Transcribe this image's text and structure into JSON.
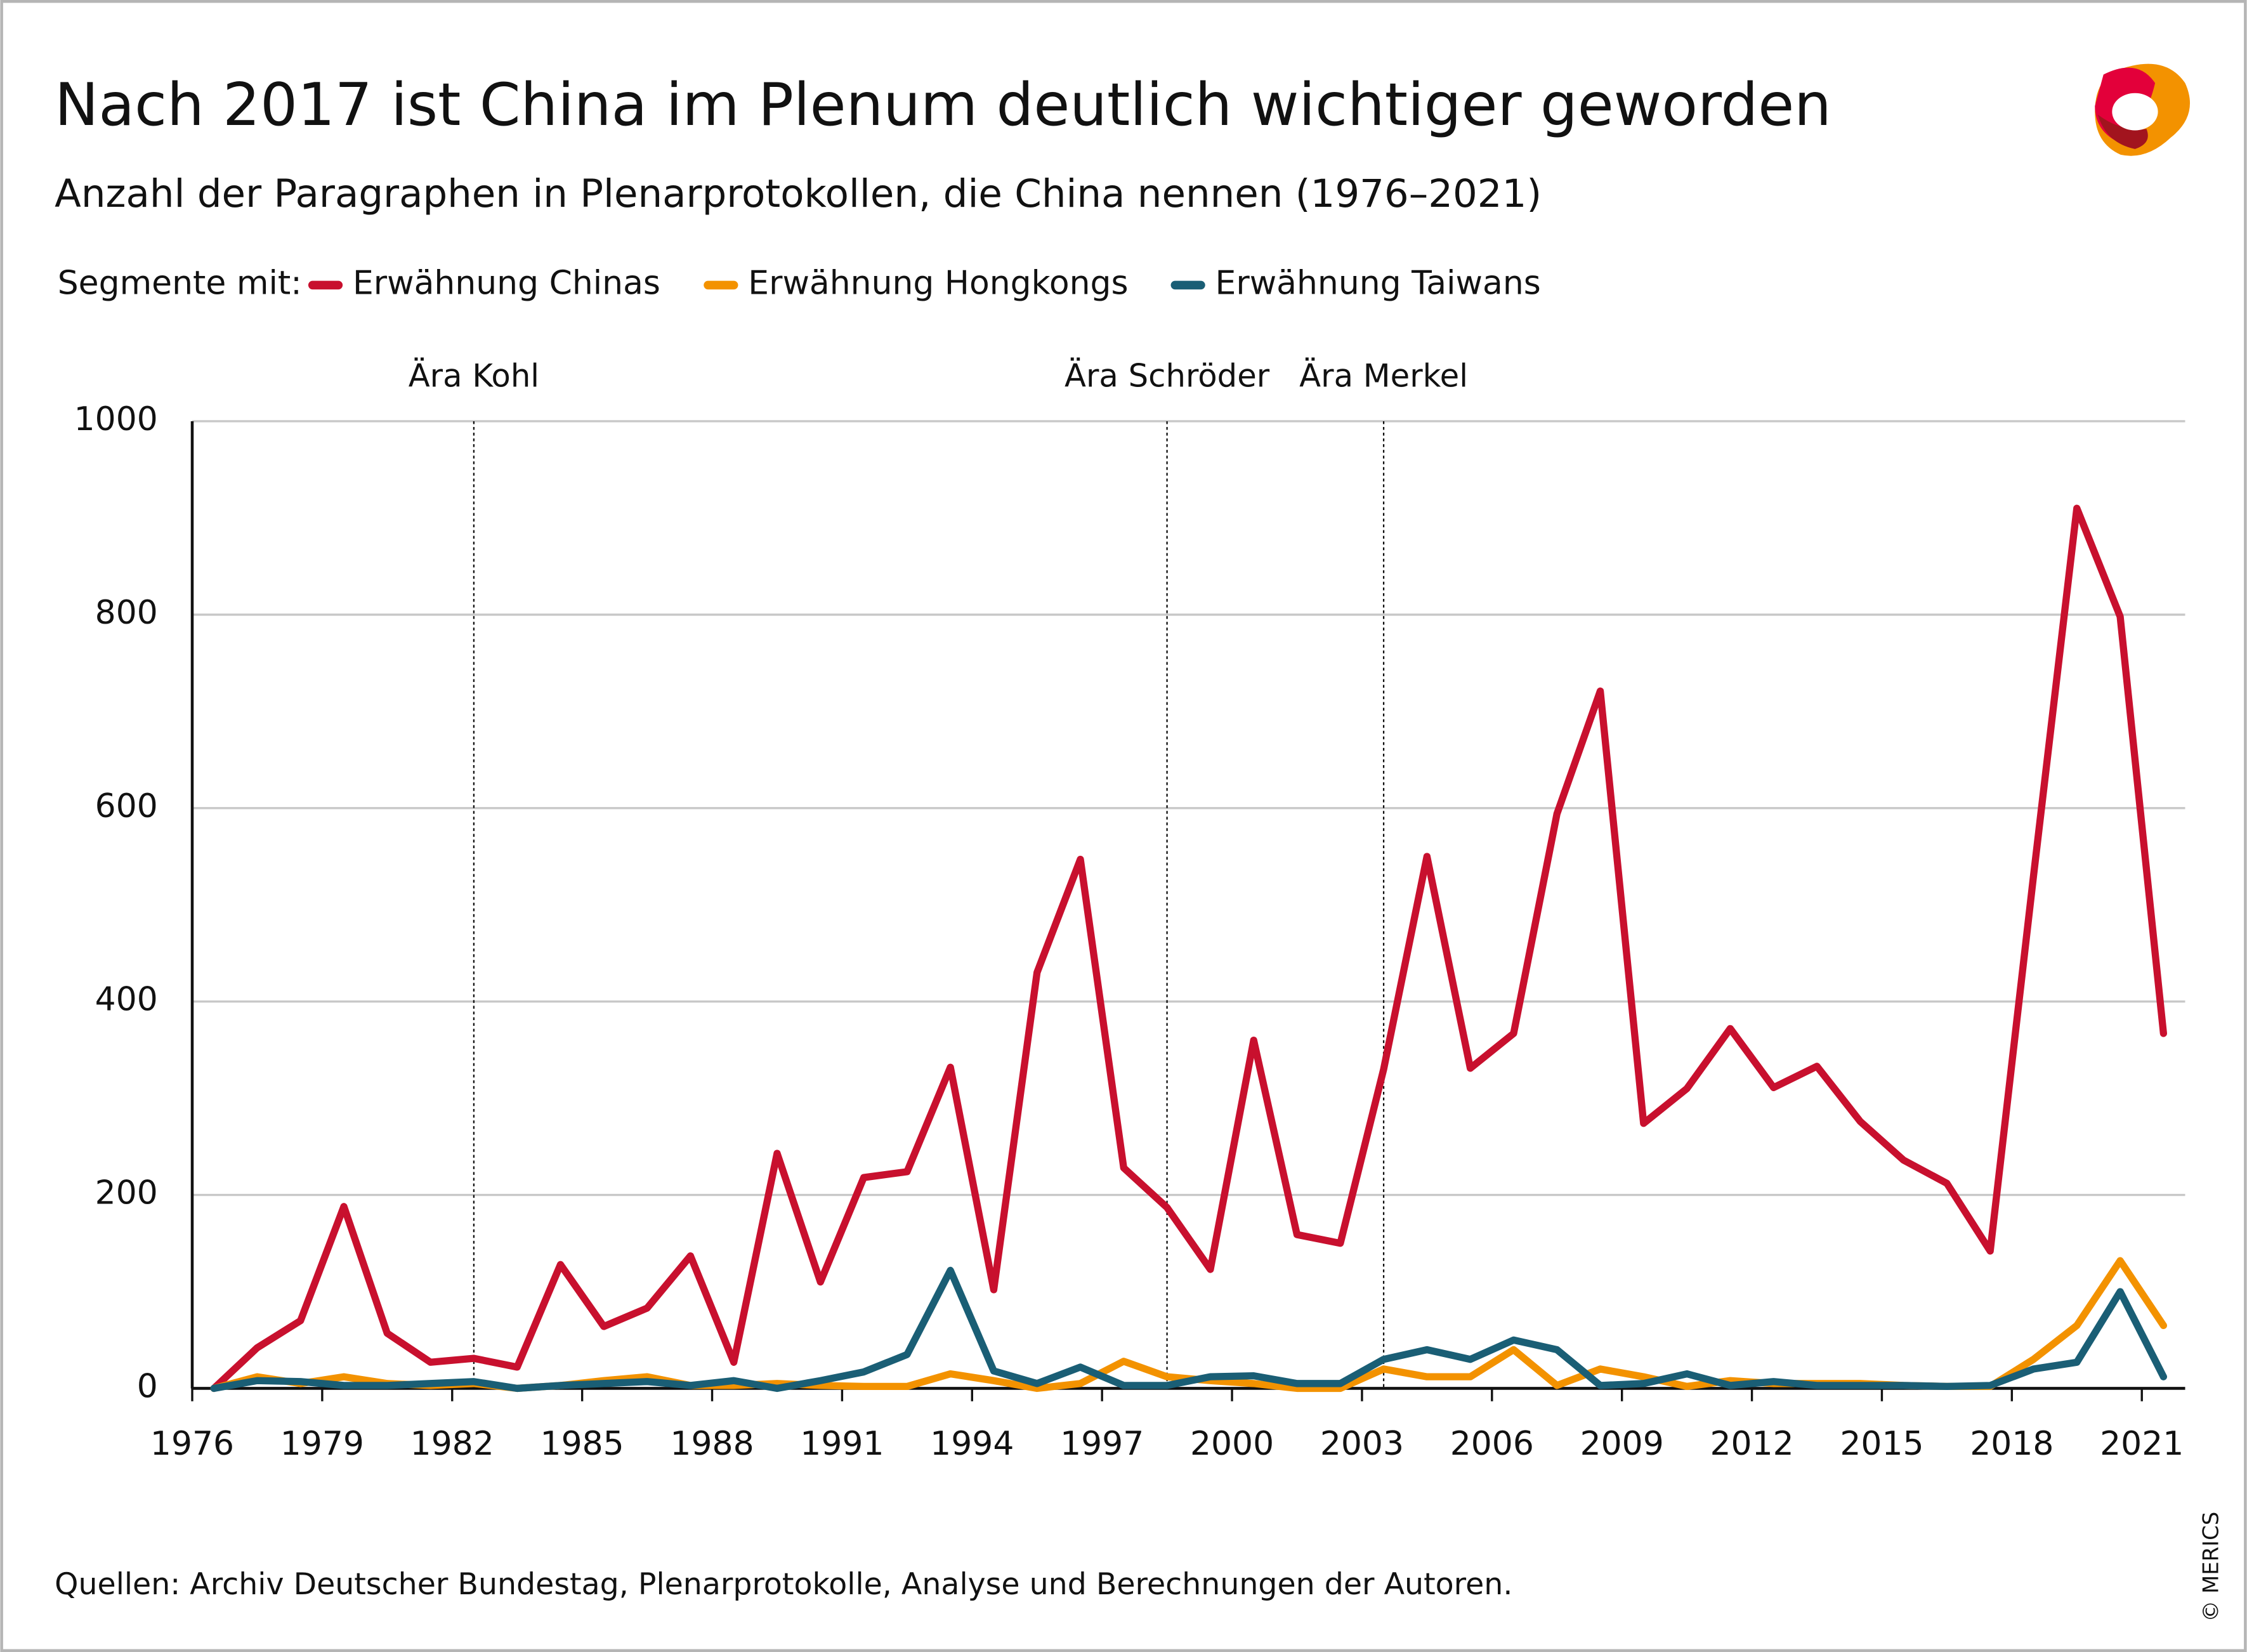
{
  "chart_data": {
    "type": "line",
    "title": "Nach 2017 ist China im Plenum deutlich wichtiger geworden",
    "subtitle": "Anzahl der Paragraphen in Plenarprotokollen, die China nennen (1976–2021)",
    "legend_title": "Segmente mit:",
    "x": [
      1976.5,
      1977.5,
      1978.5,
      1979.5,
      1980.5,
      1981.5,
      1982.5,
      1983.5,
      1984.5,
      1985.5,
      1986.5,
      1987.5,
      1988.5,
      1989.5,
      1990.5,
      1991.5,
      1992.5,
      1993.5,
      1994.5,
      1995.5,
      1996.5,
      1997.5,
      1998.5,
      1999.5,
      2000.5,
      2001.5,
      2002.5,
      2003.5,
      2004.5,
      2005.5,
      2006.5,
      2007.5,
      2008.5,
      2009.5,
      2010.5,
      2011.5,
      2012.5,
      2013.5,
      2014.5,
      2015.5,
      2016.5,
      2017.5,
      2018.5,
      2019.5,
      2020.5,
      2021.5
    ],
    "series": [
      {
        "name": "Erwähnung Chinas",
        "color": "#c8102e",
        "values": [
          0,
          42,
          70,
          188,
          57,
          27,
          31,
          22,
          128,
          64,
          83,
          137,
          27,
          243,
          110,
          218,
          224,
          332,
          102,
          430,
          547,
          228,
          187,
          123,
          360,
          159,
          150,
          330,
          550,
          331,
          367,
          594,
          721,
          274,
          310,
          372,
          311,
          333,
          276,
          236,
          212,
          142,
          530,
          910,
          798,
          367
        ]
      },
      {
        "name": "Erwähnung Hongkongs",
        "color": "#f39200",
        "values": [
          0,
          12,
          5,
          12,
          5,
          3,
          5,
          0,
          3,
          8,
          12,
          3,
          3,
          5,
          3,
          2,
          2,
          15,
          8,
          0,
          5,
          28,
          12,
          8,
          5,
          0,
          0,
          20,
          12,
          12,
          40,
          3,
          20,
          12,
          2,
          8,
          5,
          5,
          5,
          3,
          2,
          2,
          30,
          65,
          132,
          65
        ]
      },
      {
        "name": "Erwähnung Taiwans",
        "color": "#1a5e75",
        "values": [
          0,
          8,
          7,
          3,
          3,
          5,
          7,
          0,
          3,
          5,
          7,
          3,
          8,
          0,
          8,
          17,
          35,
          122,
          18,
          5,
          22,
          3,
          3,
          12,
          13,
          5,
          5,
          30,
          40,
          30,
          50,
          40,
          3,
          5,
          15,
          3,
          7,
          3,
          3,
          3,
          2,
          3,
          20,
          27,
          100,
          12
        ]
      }
    ],
    "xlim": [
      1976,
      2022
    ],
    "xticks": [
      1976,
      1979,
      1982,
      1985,
      1988,
      1991,
      1994,
      1997,
      2000,
      2003,
      2006,
      2009,
      2012,
      2015,
      2018,
      2021
    ],
    "ylim": [
      0,
      1000
    ],
    "yticks": [
      0,
      200,
      400,
      600,
      800,
      1000
    ],
    "grid": true,
    "annotations": [
      {
        "text": "Ära Kohl",
        "x": 1982.5
      },
      {
        "text": "Ära Schröder",
        "x": 1998.5
      },
      {
        "text": "Ära Merkel",
        "x": 2003.5
      }
    ],
    "source": "Quellen: Archiv Deutscher Bundestag, Plenarprotokolle, Analyse und Berechnungen der Autoren.",
    "copyright": "© MERICS"
  }
}
